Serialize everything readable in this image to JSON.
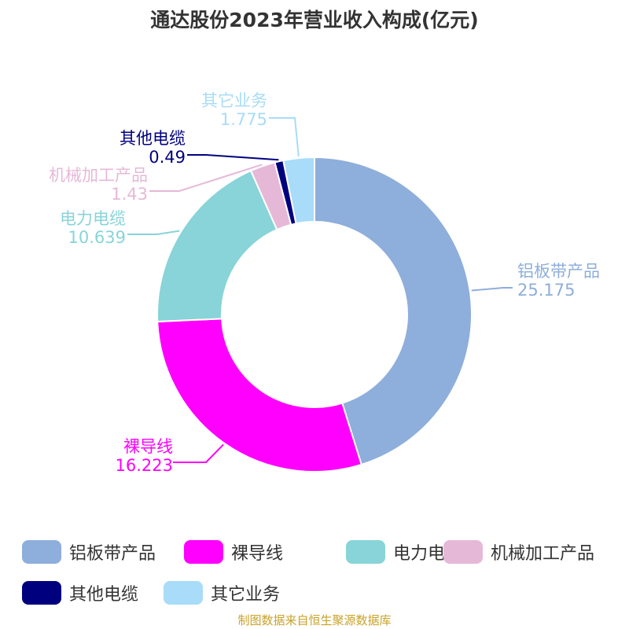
{
  "chart_data": {
    "type": "pie",
    "variant": "donut",
    "title": "通达股份2023年营业收入构成(亿元)",
    "legend_position": "bottom",
    "slices": [
      {
        "name": "铝板带产品",
        "value": 25.175,
        "label": "25.175",
        "color": "#8eaedb"
      },
      {
        "name": "裸导线",
        "value": 16.223,
        "label": "16.223",
        "color": "#ff00ff"
      },
      {
        "name": "电力电缆",
        "value": 10.639,
        "label": "10.639",
        "color": "#88d4d8"
      },
      {
        "name": "机械加工产品",
        "value": 1.43,
        "label": "1.43",
        "color": "#e6b8d8"
      },
      {
        "name": "其他电缆",
        "value": 0.49,
        "label": "0.49",
        "color": "#00007f"
      },
      {
        "name": "其它业务",
        "value": 1.775,
        "label": "1.775",
        "color": "#a8dcf8"
      }
    ]
  },
  "footer": {
    "source": "制图数据来自恒生聚源数据库"
  }
}
